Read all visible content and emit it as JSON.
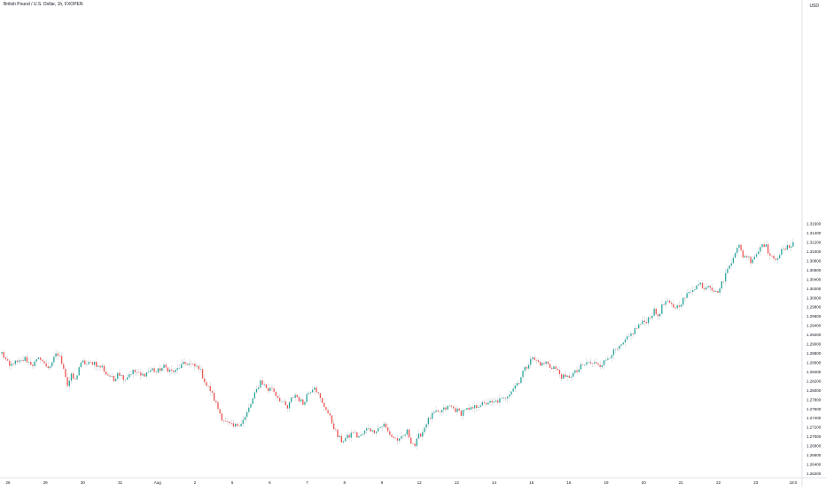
{
  "header": {
    "symbol_title": "British Pound / U.S. Dollar, 1h, FXOPEN",
    "currency": "USD"
  },
  "colors": {
    "up": "#26a69a",
    "down": "#ef5350",
    "wick": "#b2b5be",
    "axis_text": "#131722",
    "axis_line": "#e0e3eb"
  },
  "chart_data": {
    "type": "candlestick",
    "title": "British Pound / U.S. Dollar, 1h, FXOPEN",
    "ylabel": "USD",
    "ylim": [
      1.262,
      1.362
    ],
    "y_ticks": [
      "1.26200",
      "1.26400",
      "1.26600",
      "1.26800",
      "1.27000",
      "1.27200",
      "1.27400",
      "1.27600",
      "1.27800",
      "1.28000",
      "1.28200",
      "1.28400",
      "1.28600",
      "1.28800",
      "1.29000",
      "1.29200",
      "1.29400",
      "1.29600",
      "1.29800",
      "1.30000",
      "1.30200",
      "1.30400",
      "1.30600",
      "1.30800",
      "1.31000",
      "1.31200",
      "1.31400",
      "1.31600"
    ],
    "x_ticks": [
      "26",
      "29",
      "30",
      "31",
      "Aug",
      "2",
      "5",
      "6",
      "7",
      "8",
      "9",
      "12",
      "13",
      "14",
      "15",
      "16",
      "19",
      "20",
      "21",
      "22",
      "23",
      "18:0"
    ],
    "close_path": [
      1.288,
      1.2865,
      1.285,
      1.286,
      1.2858,
      1.2862,
      1.2868,
      1.286,
      1.2855,
      1.2862,
      1.287,
      1.2855,
      1.285,
      1.2855,
      1.288,
      1.287,
      1.285,
      1.281,
      1.283,
      1.282,
      1.285,
      1.286,
      1.2855,
      1.2858,
      1.286,
      1.285,
      1.285,
      1.2835,
      1.283,
      1.282,
      1.284,
      1.283,
      1.2825,
      1.2835,
      1.284,
      1.2838,
      1.283,
      1.2835,
      1.284,
      1.2845,
      1.2838,
      1.2845,
      1.285,
      1.2845,
      1.284,
      1.284,
      1.285,
      1.2855,
      1.2858,
      1.2855,
      1.285,
      1.285,
      1.283,
      1.281,
      1.28,
      1.278,
      1.276,
      1.274,
      1.273,
      1.2725,
      1.272,
      1.2725,
      1.273,
      1.274,
      1.276,
      1.278,
      1.28,
      1.282,
      1.281,
      1.28,
      1.2805,
      1.279,
      1.278,
      1.277,
      1.276,
      1.278,
      1.279,
      1.278,
      1.277,
      1.279,
      1.28,
      1.281,
      1.279,
      1.277,
      1.276,
      1.274,
      1.272,
      1.27,
      1.269,
      1.2695,
      1.27,
      1.271,
      1.27,
      1.27,
      1.271,
      1.272,
      1.271,
      1.2715,
      1.272,
      1.2725,
      1.271,
      1.27,
      1.2695,
      1.269,
      1.27,
      1.271,
      1.269,
      1.268,
      1.27,
      1.271,
      1.273,
      1.274,
      1.275,
      1.275,
      1.2755,
      1.276,
      1.2765,
      1.276,
      1.2755,
      1.275,
      1.276,
      1.2755,
      1.276,
      1.2765,
      1.277,
      1.2768,
      1.2775,
      1.277,
      1.2775,
      1.2778,
      1.278,
      1.279,
      1.28,
      1.281,
      1.282,
      1.284,
      1.285,
      1.287,
      1.2865,
      1.286,
      1.2855,
      1.286,
      1.285,
      1.285,
      1.284,
      1.283,
      1.2825,
      1.283,
      1.2835,
      1.284,
      1.285,
      1.2855,
      1.286,
      1.2855,
      1.286,
      1.2855,
      1.286,
      1.287,
      1.288,
      1.2885,
      1.289,
      1.29,
      1.291,
      1.292,
      1.293,
      1.294,
      1.2945,
      1.295,
      1.296,
      1.297,
      1.296,
      1.298,
      1.299,
      1.2985,
      1.298,
      1.298,
      1.299,
      1.3,
      1.301,
      1.302,
      1.3025,
      1.303,
      1.302,
      1.303,
      1.302,
      1.301,
      1.302,
      1.304,
      1.306,
      1.308,
      1.31,
      1.311,
      1.309,
      1.309,
      1.308,
      1.309,
      1.31,
      1.312,
      1.311,
      1.309,
      1.308,
      1.309,
      1.31,
      1.3105,
      1.311,
      1.312
    ]
  }
}
